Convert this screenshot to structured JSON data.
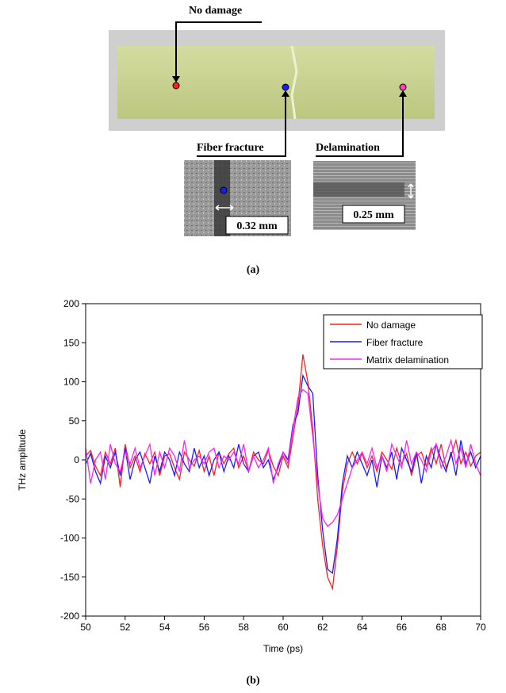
{
  "panel_a": {
    "panel_label": "(a)",
    "no_damage": "No damage",
    "fiber_fracture": "Fiber fracture",
    "delamination": "Delamination",
    "fiber_width": "0.32 mm",
    "delam_width": "0.25 mm"
  },
  "chart_data": {
    "type": "line",
    "panel_label": "(b)",
    "x_label": "Time (ps)",
    "y_label": "THz amplitude",
    "xlim": [
      50,
      70
    ],
    "xticks": [
      50,
      52,
      54,
      56,
      58,
      60,
      62,
      64,
      66,
      68,
      70
    ],
    "ylim": [
      -200,
      200
    ],
    "yticks": [
      -200,
      -150,
      -100,
      -50,
      0,
      50,
      100,
      150,
      200
    ],
    "legend": "upper right",
    "x": [
      50,
      50.25,
      50.5,
      50.75,
      51,
      51.25,
      51.5,
      51.75,
      52,
      52.25,
      52.5,
      52.75,
      53,
      53.25,
      53.5,
      53.75,
      54,
      54.25,
      54.5,
      54.75,
      55,
      55.25,
      55.5,
      55.75,
      56,
      56.25,
      56.5,
      56.75,
      57,
      57.25,
      57.5,
      57.75,
      58,
      58.25,
      58.5,
      58.75,
      59,
      59.25,
      59.5,
      59.75,
      60,
      60.25,
      60.5,
      60.75,
      61,
      61.25,
      61.5,
      61.75,
      62,
      62.25,
      62.5,
      62.75,
      63,
      63.25,
      63.5,
      63.75,
      64,
      64.25,
      64.5,
      64.75,
      65,
      65.25,
      65.5,
      65.75,
      66,
      66.25,
      66.5,
      66.75,
      67,
      67.25,
      67.5,
      67.75,
      68,
      68.25,
      68.5,
      68.75,
      69,
      69.25,
      69.5,
      69.75,
      70
    ],
    "series": [
      {
        "name": "No damage",
        "color": "#ff2020",
        "values": [
          5,
          12,
          -8,
          -20,
          10,
          -5,
          15,
          -35,
          20,
          -10,
          5,
          -15,
          8,
          -5,
          10,
          -20,
          5,
          8,
          -10,
          -25,
          10,
          0,
          -8,
          12,
          -15,
          5,
          -20,
          10,
          -5,
          8,
          15,
          -10,
          5,
          -15,
          10,
          0,
          -5,
          12,
          -8,
          -20,
          5,
          -10,
          30,
          70,
          135,
          100,
          40,
          -50,
          -110,
          -150,
          -165,
          -110,
          -40,
          -5,
          10,
          -5,
          8,
          -10,
          5,
          -15,
          10,
          0,
          -12,
          15,
          -5,
          8,
          -20,
          5,
          10,
          -8,
          15,
          -5,
          20,
          -10,
          5,
          25,
          -5,
          10,
          -8,
          5,
          10
        ]
      },
      {
        "name": "Fiber fracture",
        "color": "#1a1aff",
        "values": [
          -5,
          8,
          -15,
          -30,
          5,
          -10,
          10,
          -20,
          15,
          -25,
          0,
          10,
          -10,
          -30,
          5,
          -15,
          10,
          0,
          -20,
          10,
          -5,
          -15,
          15,
          -10,
          5,
          -20,
          0,
          10,
          -15,
          5,
          -10,
          20,
          -5,
          -15,
          5,
          10,
          -10,
          0,
          -25,
          -10,
          10,
          0,
          45,
          60,
          108,
          95,
          85,
          -20,
          -90,
          -140,
          -145,
          -100,
          -30,
          5,
          -10,
          10,
          -5,
          -20,
          0,
          -35,
          5,
          -10,
          10,
          -25,
          15,
          0,
          -15,
          10,
          -30,
          5,
          -10,
          20,
          0,
          -15,
          10,
          -20,
          25,
          -5,
          10,
          -10,
          5
        ]
      },
      {
        "name": "Matrix delamination",
        "color": "#ff20ff",
        "values": [
          15,
          -30,
          0,
          10,
          -25,
          20,
          -5,
          -15,
          10,
          -5,
          15,
          -10,
          5,
          20,
          -20,
          10,
          -10,
          15,
          5,
          -15,
          25,
          -10,
          0,
          5,
          -5,
          10,
          15,
          -10,
          5,
          0,
          10,
          -5,
          20,
          -15,
          5,
          -10,
          0,
          15,
          -30,
          -5,
          10,
          -5,
          40,
          80,
          90,
          85,
          30,
          -30,
          -75,
          -85,
          -80,
          -70,
          -50,
          -30,
          -10,
          0,
          10,
          -5,
          15,
          -10,
          5,
          -15,
          20,
          5,
          -10,
          25,
          -5,
          10,
          0,
          -15,
          10,
          20,
          -10,
          5,
          25,
          -5,
          15,
          -10,
          20,
          -5,
          -20
        ]
      }
    ]
  }
}
